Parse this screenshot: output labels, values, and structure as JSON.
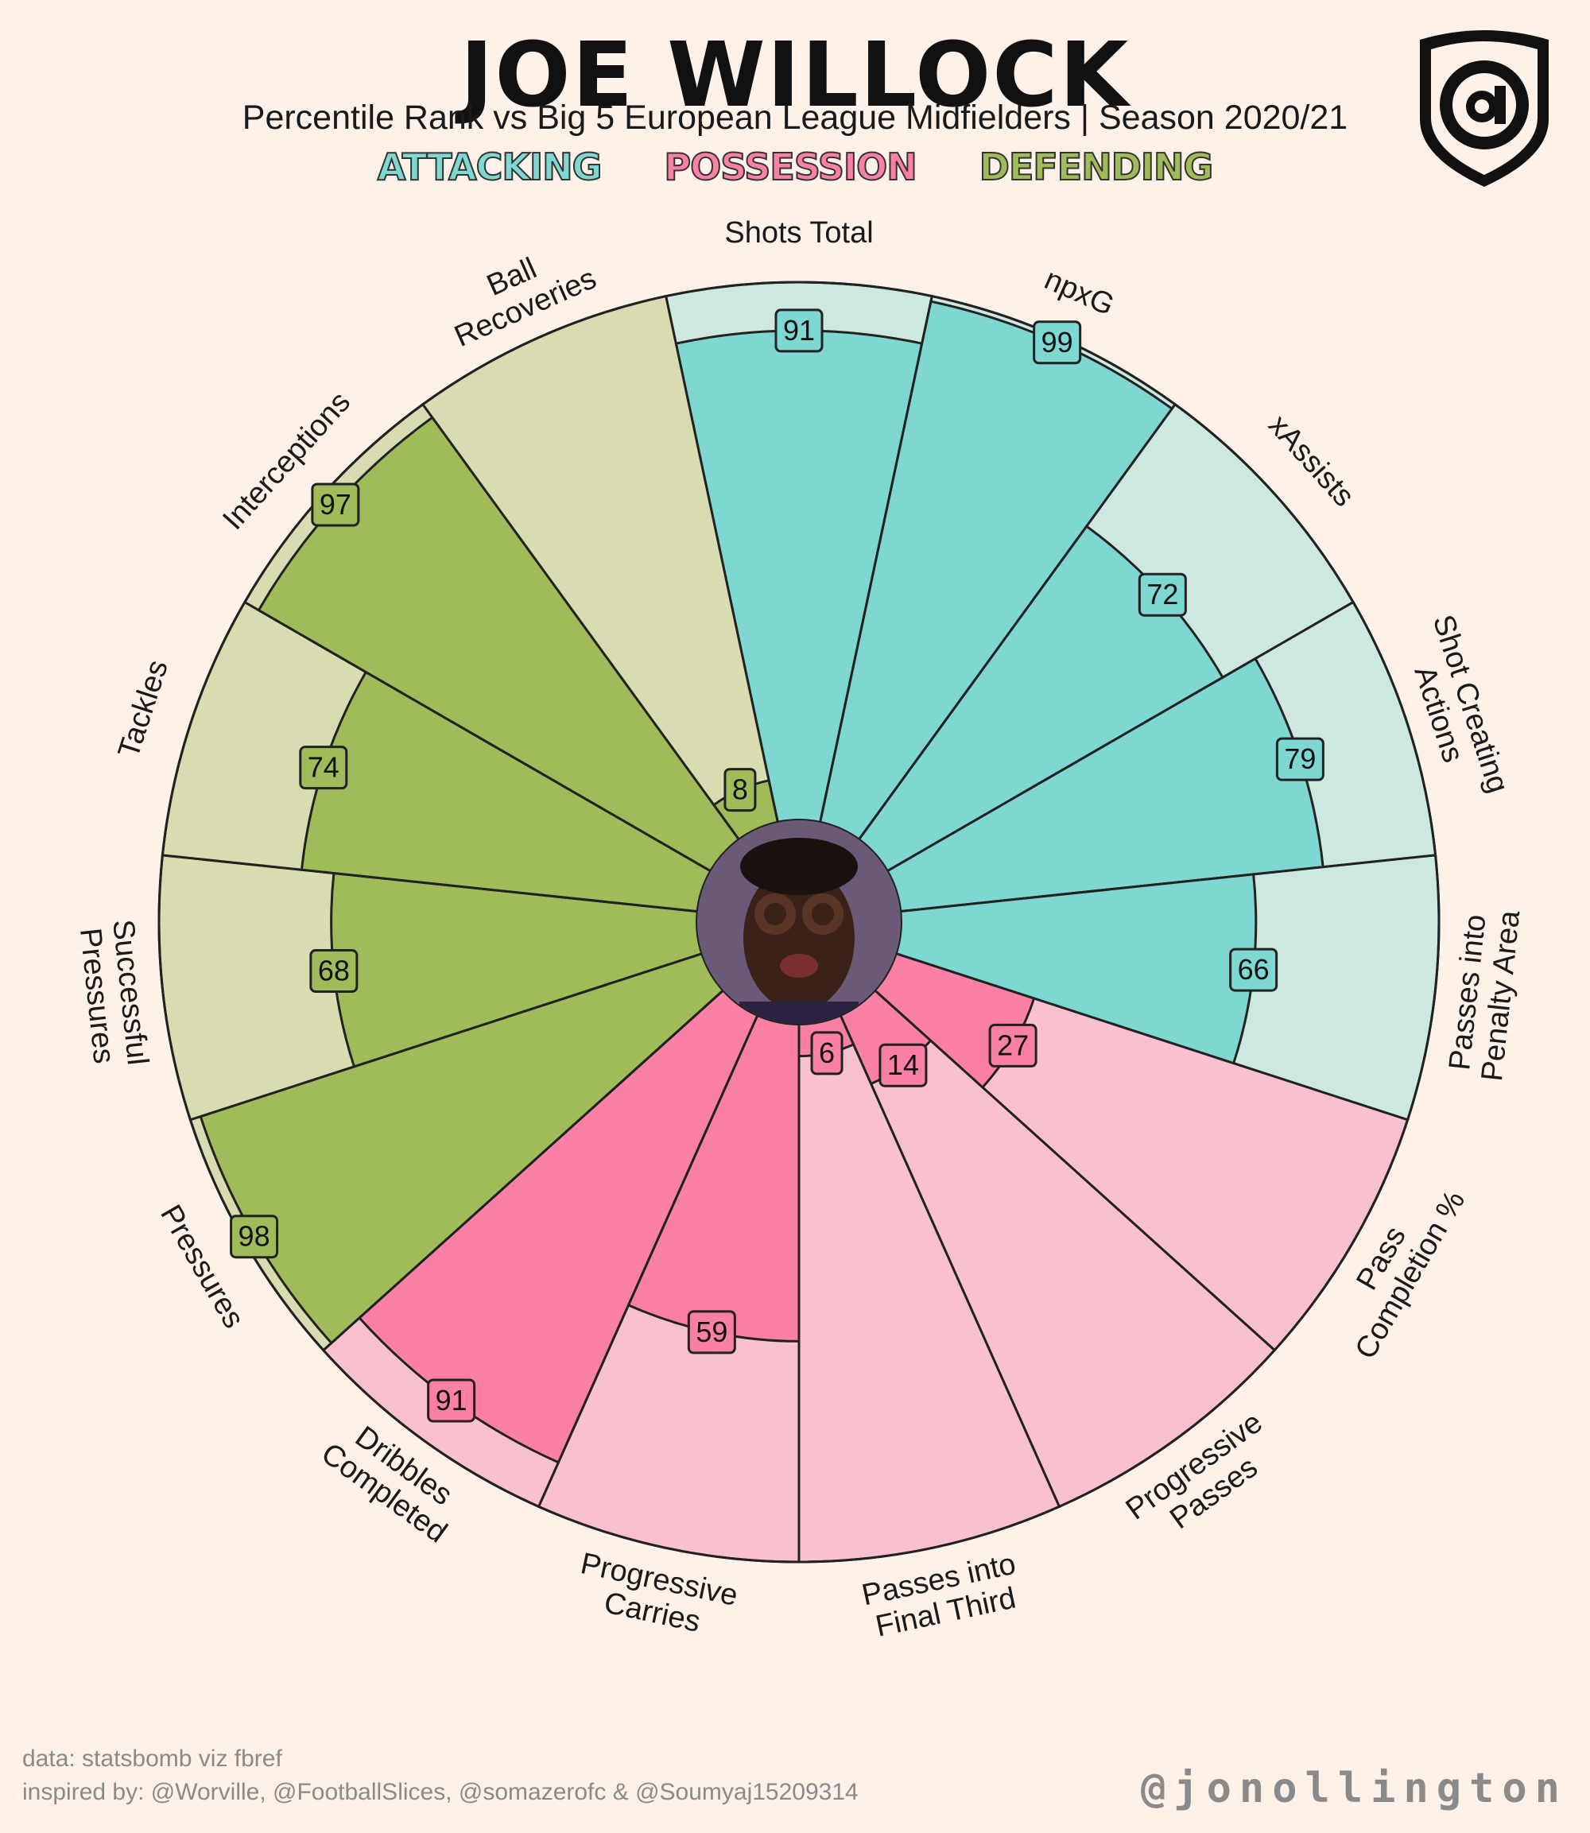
{
  "header": {
    "title": "JOE WILLOCK",
    "subtitle": "Percentile Rank vs Big 5 European League Midfielders | Season 2020/21"
  },
  "legend": {
    "attacking": "ATTACKING",
    "possession": "POSSESSION",
    "defending": "DEFENDING"
  },
  "colors": {
    "attacking": "#7fd7d2",
    "attacking_light": "#cde8e0",
    "possession": "#fb80a6",
    "possession_light": "#f9c1cf",
    "defending": "#9fbb5a",
    "defending_light": "#d8dcb0",
    "background": "#fdf1e8"
  },
  "logo": {
    "icon": "shield-at-icon"
  },
  "center_icon": "player-photo",
  "chart_data": {
    "type": "radial-bar",
    "range": [
      0,
      100
    ],
    "categories": [
      "Shots Total",
      "npxG",
      "xAssists",
      "Shot Creating\nActions",
      "Passes into\nPenalty Area",
      "Pass\nCompletion %",
      "Progressive\nPasses",
      "Passes into\nFinal Third",
      "Progressive\nCarries",
      "Dribbles\nCompleted",
      "Pressures",
      "Successful\nPressures",
      "Tackles",
      "Interceptions",
      "Ball\nRecoveries"
    ],
    "groups": [
      "attacking",
      "attacking",
      "attacking",
      "attacking",
      "attacking",
      "possession",
      "possession",
      "possession",
      "possession",
      "possession",
      "defending",
      "defending",
      "defending",
      "defending",
      "defending"
    ],
    "values": [
      91,
      99,
      72,
      79,
      66,
      27,
      14,
      6,
      59,
      91,
      98,
      68,
      74,
      97,
      8
    ],
    "value_labels": [
      "91",
      "99",
      "72",
      "79",
      "66",
      "27",
      "14",
      "6",
      "59",
      "91",
      "98",
      "68",
      "74",
      "97",
      "8"
    ]
  },
  "footer": {
    "data_source": "data: statsbomb viz fbref",
    "inspired_by": "inspired by: @Worville, @FootballSlices, @somazerofc & @Soumyaj15209314",
    "handle": "@jonollington"
  }
}
